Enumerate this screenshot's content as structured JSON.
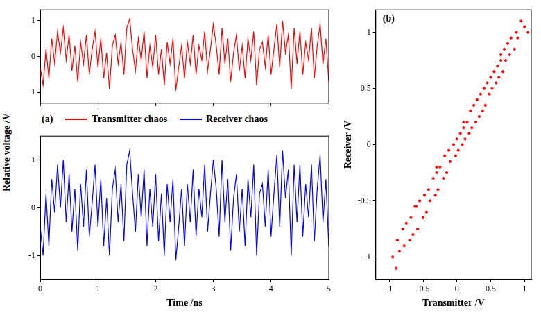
{
  "chart_data": [
    {
      "type": "line",
      "title": "(a)",
      "ylabel": "Relative voltage /V",
      "x": [
        0,
        0.05,
        0.1,
        0.15,
        0.2,
        0.25,
        0.3,
        0.35,
        0.4,
        0.45,
        0.5,
        0.55,
        0.6,
        0.65,
        0.7,
        0.75,
        0.8,
        0.85,
        0.9,
        0.95,
        1,
        1.05,
        1.1,
        1.15,
        1.2,
        1.25,
        1.3,
        1.35,
        1.4,
        1.45,
        1.5,
        1.55,
        1.6,
        1.65,
        1.7,
        1.75,
        1.8,
        1.85,
        1.9,
        1.95,
        2,
        2.05,
        2.1,
        2.15,
        2.2,
        2.25,
        2.3,
        2.35,
        2.4,
        2.45,
        2.5,
        2.55,
        2.6,
        2.65,
        2.7,
        2.75,
        2.8,
        2.85,
        2.9,
        2.95,
        3,
        3.05,
        3.1,
        3.15,
        3.2,
        3.25,
        3.3,
        3.35,
        3.4,
        3.45,
        3.5,
        3.55,
        3.6,
        3.65,
        3.7,
        3.75,
        3.8,
        3.85,
        3.9,
        3.95,
        4,
        4.05,
        4.1,
        4.15,
        4.2,
        4.25,
        4.3,
        4.35,
        4.4,
        4.45,
        4.5,
        4.55,
        4.6,
        4.65,
        4.7,
        4.75,
        4.8,
        4.85,
        4.9,
        4.95,
        5
      ],
      "series": [
        {
          "name": "Transmitter chaos",
          "color": "#ff0000",
          "values": [
            -0.3,
            -0.8,
            0.2,
            -0.6,
            0.5,
            -0.2,
            0.7,
            0.1,
            0.8,
            -0.1,
            0.6,
            -0.4,
            0.3,
            -0.7,
            0.4,
            -0.2,
            0.6,
            -0.5,
            0.2,
            0.7,
            -0.3,
            0.5,
            -0.6,
            0.1,
            -0.9,
            0.3,
            0.6,
            -0.2,
            0.4,
            -0.5,
            0.8,
            1.05,
            0.2,
            -0.4,
            0.5,
            -0.1,
            0.7,
            -0.6,
            0.3,
            -0.3,
            0.6,
            -0.5,
            0.2,
            -0.8,
            0.4,
            -0.2,
            0.5,
            -0.95,
            -0.3,
            0.3,
            -0.6,
            0.4,
            -0.2,
            0.6,
            -0.5,
            0.3,
            -0.1,
            0.7,
            -0.4,
            0.2,
            0.9,
            0.3,
            -0.5,
            0.8,
            -0.2,
            0.5,
            -0.7,
            0.1,
            0.6,
            -0.4,
            0.3,
            -0.6,
            0.5,
            -0.1,
            0.7,
            -0.8,
            0.2,
            0.4,
            -0.3,
            0.6,
            -0.5,
            0.2,
            0.9,
            -0.3,
            1.0,
            0.1,
            0.6,
            -0.9,
            0.8,
            -0.2,
            0.7,
            -0.5,
            0.4,
            -0.1,
            0.8,
            -0.6,
            0.3,
            0.9,
            -0.2,
            0.5,
            -0.7
          ]
        }
      ],
      "xlim": [
        0,
        5
      ],
      "xticks": [
        0,
        1,
        2,
        3,
        4,
        5
      ],
      "ylim": [
        -1.3,
        1.3
      ],
      "yticks": [
        -1,
        0,
        1
      ],
      "grid": false,
      "tick_labels": "y"
    },
    {
      "type": "line",
      "xlabel": "Time /ns",
      "x": [
        0,
        0.05,
        0.1,
        0.15,
        0.2,
        0.25,
        0.3,
        0.35,
        0.4,
        0.45,
        0.5,
        0.55,
        0.6,
        0.65,
        0.7,
        0.75,
        0.8,
        0.85,
        0.9,
        0.95,
        1,
        1.05,
        1.1,
        1.15,
        1.2,
        1.25,
        1.3,
        1.35,
        1.4,
        1.45,
        1.5,
        1.55,
        1.6,
        1.65,
        1.7,
        1.75,
        1.8,
        1.85,
        1.9,
        1.95,
        2,
        2.05,
        2.1,
        2.15,
        2.2,
        2.25,
        2.3,
        2.35,
        2.4,
        2.45,
        2.5,
        2.55,
        2.6,
        2.65,
        2.7,
        2.75,
        2.8,
        2.85,
        2.9,
        2.95,
        3,
        3.05,
        3.1,
        3.15,
        3.2,
        3.25,
        3.3,
        3.35,
        3.4,
        3.45,
        3.5,
        3.55,
        3.6,
        3.65,
        3.7,
        3.75,
        3.8,
        3.85,
        3.9,
        3.95,
        4,
        4.05,
        4.1,
        4.15,
        4.2,
        4.25,
        4.3,
        4.35,
        4.4,
        4.45,
        4.5,
        4.55,
        4.6,
        4.65,
        4.7,
        4.75,
        4.8,
        4.85,
        4.9,
        4.95,
        5
      ],
      "series": [
        {
          "name": "Receiver chaos",
          "color": "#0000ff",
          "values": [
            -0.4,
            -1.0,
            0.3,
            -0.8,
            0.6,
            -0.1,
            0.9,
            0.0,
            1.0,
            -0.3,
            0.7,
            -0.5,
            0.4,
            -0.9,
            0.5,
            -0.4,
            0.8,
            -0.6,
            0.1,
            0.9,
            -0.4,
            0.6,
            -0.8,
            0.2,
            -1.0,
            0.4,
            0.8,
            -0.3,
            0.5,
            -0.7,
            0.9,
            1.2,
            0.3,
            -0.5,
            0.7,
            -0.2,
            0.8,
            -0.8,
            0.4,
            -0.4,
            0.7,
            -0.7,
            0.3,
            -1.0,
            0.5,
            -0.3,
            0.6,
            -1.1,
            -0.4,
            0.4,
            -0.8,
            0.5,
            -0.3,
            0.8,
            -0.6,
            0.4,
            -0.2,
            0.9,
            -0.5,
            0.3,
            1.0,
            0.4,
            -0.6,
            1.0,
            -0.3,
            0.6,
            -0.9,
            0.2,
            0.7,
            -0.5,
            0.4,
            -0.8,
            0.6,
            -0.2,
            0.9,
            -1.0,
            0.3,
            0.5,
            -0.4,
            0.8,
            -0.6,
            0.3,
            1.1,
            -0.4,
            1.2,
            0.2,
            0.8,
            -1.0,
            0.9,
            -0.3,
            0.9,
            -0.6,
            0.5,
            -0.2,
            0.9,
            -0.7,
            0.4,
            1.1,
            -0.3,
            0.6,
            -0.8
          ]
        }
      ],
      "xlim": [
        0,
        5
      ],
      "xticks": [
        0,
        1,
        2,
        3,
        4,
        5
      ],
      "ylim": [
        -1.5,
        1.5
      ],
      "yticks": [
        -1,
        0,
        1
      ],
      "grid": false
    },
    {
      "type": "scatter",
      "title": "(b)",
      "xlabel": "Transmitter /V",
      "ylabel": "Receiver /V",
      "x": [
        -0.95,
        -0.9,
        -0.88,
        -0.85,
        -0.8,
        -0.78,
        -0.75,
        -0.7,
        -0.68,
        -0.65,
        -0.6,
        -0.58,
        -0.55,
        -0.5,
        -0.48,
        -0.45,
        -0.42,
        -0.4,
        -0.35,
        -0.32,
        -0.3,
        -0.28,
        -0.25,
        -0.2,
        -0.18,
        -0.15,
        -0.12,
        -0.1,
        -0.05,
        -0.02,
        0,
        0.02,
        0.05,
        0.08,
        0.1,
        0.12,
        0.15,
        0.18,
        0.2,
        0.22,
        0.25,
        0.28,
        0.3,
        0.33,
        0.35,
        0.38,
        0.4,
        0.42,
        0.45,
        0.48,
        0.5,
        0.52,
        0.55,
        0.58,
        0.6,
        0.62,
        0.65,
        0.68,
        0.7,
        0.72,
        0.75,
        0.78,
        0.8,
        0.85,
        0.88,
        0.9,
        0.95,
        1.0,
        1.05,
        -0.62,
        -0.3,
        0.1,
        0.4,
        -0.5,
        0.65
      ],
      "values": [
        -1.0,
        -1.1,
        -0.85,
        -0.95,
        -0.75,
        -0.9,
        -0.7,
        -0.85,
        -0.65,
        -0.8,
        -0.55,
        -0.75,
        -0.5,
        -0.65,
        -0.45,
        -0.6,
        -0.4,
        -0.5,
        -0.3,
        -0.45,
        -0.25,
        -0.4,
        -0.2,
        -0.3,
        -0.1,
        -0.25,
        -0.05,
        -0.15,
        0.0,
        -0.1,
        0.05,
        -0.05,
        0.1,
        0.0,
        0.15,
        0.05,
        0.2,
        0.1,
        0.3,
        0.15,
        0.35,
        0.2,
        0.4,
        0.25,
        0.45,
        0.3,
        0.5,
        0.35,
        0.55,
        0.45,
        0.6,
        0.5,
        0.65,
        0.55,
        0.7,
        0.6,
        0.8,
        0.65,
        0.85,
        0.75,
        0.9,
        0.8,
        0.95,
        0.85,
        1.0,
        0.95,
        1.1,
        1.05,
        1.0,
        -0.55,
        -0.2,
        0.2,
        0.5,
        -0.65,
        0.75
      ],
      "color": "#ff0000",
      "marker": "circle",
      "xlim": [
        -1.2,
        1.1
      ],
      "xticks": [
        -1,
        -0.5,
        0,
        0.5,
        1
      ],
      "ylim": [
        -1.2,
        1.2
      ],
      "yticks": [
        -1,
        -0.5,
        0,
        0.5,
        1
      ],
      "grid": false
    }
  ]
}
